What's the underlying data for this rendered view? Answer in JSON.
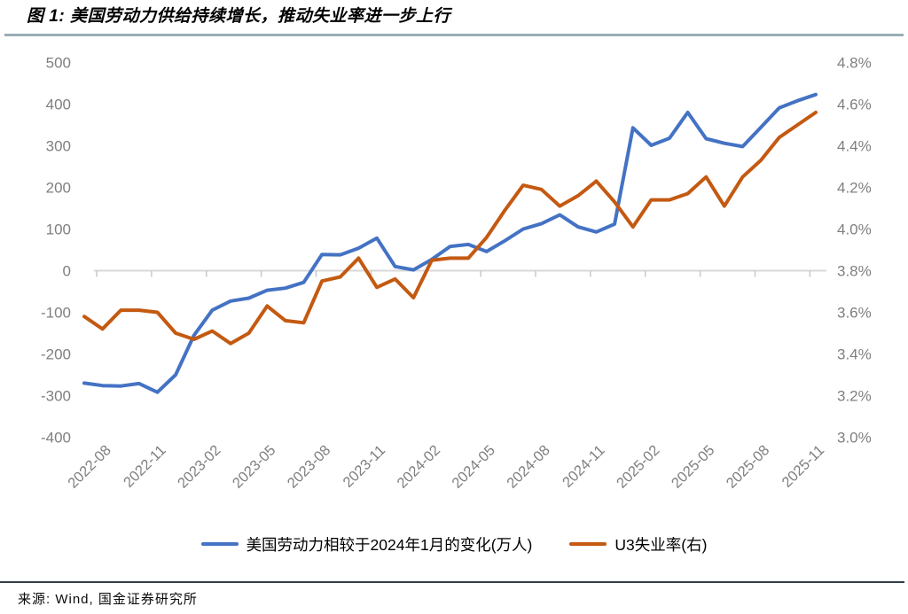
{
  "header": {
    "title": "图 1: 美国劳动力供给持续增长，推动失业率进一步上行"
  },
  "footer": {
    "source": "来源: Wind, 国金证券研究所"
  },
  "colors": {
    "labor_force_line": "#4472C4",
    "u3_line": "#C45911",
    "axis_text": "#7f7f7f",
    "axis_line": "#d9d9d9"
  },
  "chart_data": {
    "type": "line",
    "title": "美国劳动力供给持续增长，推动失业率进一步上行",
    "x": [
      "2022-08",
      "2022-09",
      "2022-10",
      "2022-11",
      "2022-12",
      "2023-01",
      "2023-02",
      "2023-03",
      "2023-04",
      "2023-05",
      "2023-06",
      "2023-07",
      "2023-08",
      "2023-09",
      "2023-10",
      "2023-11",
      "2023-12",
      "2024-01",
      "2024-02",
      "2024-03",
      "2024-04",
      "2024-05",
      "2024-06",
      "2024-07",
      "2024-08",
      "2024-09",
      "2024-10",
      "2024-11",
      "2024-12",
      "2025-01",
      "2025-02",
      "2025-03",
      "2025-04",
      "2025-05",
      "2025-06",
      "2025-07",
      "2025-08",
      "2025-09",
      "2025-10",
      "2025-11",
      "2025-12"
    ],
    "x_tick_labels": [
      "2022-08",
      "2022-11",
      "2023-02",
      "2023-05",
      "2023-08",
      "2023-11",
      "2024-02",
      "2024-05",
      "2024-08",
      "2024-11",
      "2025-02",
      "2025-05",
      "2025-08",
      "2025-11"
    ],
    "series": [
      {
        "name": "美国劳动力相较于2024年1月的变化(万人)",
        "axis": "left",
        "color": "#4472C4",
        "values": [
          -270,
          -276,
          -277,
          -271,
          -292,
          -250,
          -155,
          -95,
          -73,
          -66,
          -47,
          -42,
          -28,
          39,
          38,
          54,
          78,
          10,
          2,
          27,
          58,
          63,
          46,
          72,
          100,
          113,
          134,
          105,
          93,
          112,
          343,
          301,
          318,
          380,
          317,
          306,
          298,
          344,
          391,
          408,
          423
        ]
      },
      {
        "name": "U3失业率(右)",
        "axis": "right",
        "color": "#C45911",
        "values": [
          3.58,
          3.52,
          3.61,
          3.61,
          3.6,
          3.5,
          3.47,
          3.51,
          3.45,
          3.5,
          3.63,
          3.56,
          3.55,
          3.75,
          3.77,
          3.86,
          3.72,
          3.76,
          3.67,
          3.85,
          3.86,
          3.86,
          3.96,
          4.09,
          4.21,
          4.19,
          4.11,
          4.16,
          4.23,
          4.13,
          4.01,
          4.14,
          4.14,
          4.17,
          4.25,
          4.11,
          4.25,
          4.33,
          4.44,
          4.5,
          4.56
        ]
      }
    ],
    "left_axis": {
      "ticks": [
        500,
        400,
        300,
        200,
        100,
        0,
        -100,
        -200,
        -300,
        -400
      ],
      "range": [
        -400,
        500
      ]
    },
    "right_axis": {
      "ticks": [
        "4.8%",
        "4.6%",
        "4.4%",
        "4.2%",
        "4.0%",
        "3.8%",
        "3.6%",
        "3.4%",
        "3.2%",
        "3.0%"
      ],
      "range": [
        3.0,
        4.8
      ]
    },
    "grid": "zero-line-only",
    "legend_position": "bottom"
  }
}
